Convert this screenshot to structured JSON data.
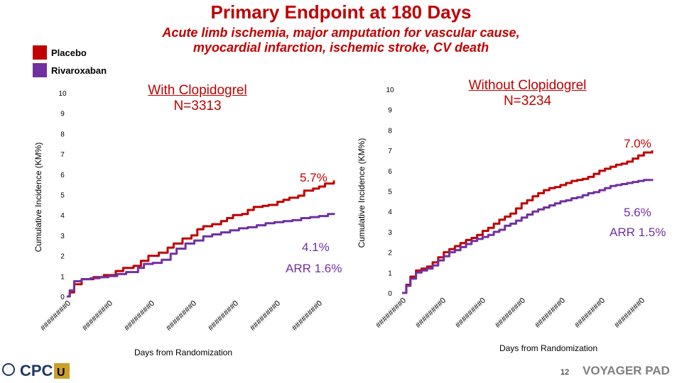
{
  "slide": {
    "title": "Primary Endpoint at 180 Days",
    "subtitle_line1": "Acute limb ischemia, major amputation for vascular cause,",
    "subtitle_line2": "myocardial infarction, ischemic stroke, CV death",
    "page_number": "12",
    "logos": {
      "left": "CPC",
      "right": "VOYAGER PAD"
    }
  },
  "legend": [
    {
      "label": "Placebo",
      "color": "#c00000"
    },
    {
      "label": "Rivaroxaban",
      "color": "#7030a0"
    }
  ],
  "chart_data": [
    {
      "type": "line",
      "title_line1": "With Clopidogrel",
      "title_line2": "N=3313",
      "xlabel": "Days from Randomization",
      "ylabel": "Cumulative Incidence (KM%)",
      "ylim": [
        0,
        10
      ],
      "yticks": [
        0,
        1,
        2,
        3,
        4,
        5,
        6,
        7,
        8,
        9,
        10
      ],
      "x_tick_labels": [
        "########0",
        "########0",
        "########0",
        "########0",
        "########0",
        "########0",
        "########0"
      ],
      "xlim": [
        0,
        180
      ],
      "grid": false,
      "annotations": {
        "placebo_end": "5.7%",
        "rivaroxaban_end": "4.1%",
        "arr": "ARR 1.6%"
      },
      "series": [
        {
          "name": "Placebo",
          "color": "#c00000",
          "points": [
            [
              0,
              0
            ],
            [
              2,
              0.2
            ],
            [
              5,
              0.6
            ],
            [
              10,
              0.85
            ],
            [
              18,
              0.95
            ],
            [
              25,
              1.05
            ],
            [
              33,
              1.25
            ],
            [
              38,
              1.4
            ],
            [
              45,
              1.5
            ],
            [
              50,
              1.75
            ],
            [
              55,
              2.0
            ],
            [
              62,
              2.15
            ],
            [
              68,
              2.4
            ],
            [
              72,
              2.6
            ],
            [
              78,
              2.85
            ],
            [
              84,
              3.0
            ],
            [
              88,
              3.3
            ],
            [
              92,
              3.45
            ],
            [
              98,
              3.55
            ],
            [
              104,
              3.7
            ],
            [
              108,
              3.85
            ],
            [
              112,
              4.0
            ],
            [
              118,
              4.05
            ],
            [
              122,
              4.25
            ],
            [
              126,
              4.4
            ],
            [
              132,
              4.45
            ],
            [
              136,
              4.5
            ],
            [
              142,
              4.65
            ],
            [
              146,
              4.75
            ],
            [
              150,
              4.85
            ],
            [
              156,
              4.95
            ],
            [
              160,
              5.2
            ],
            [
              166,
              5.3
            ],
            [
              170,
              5.4
            ],
            [
              174,
              5.55
            ],
            [
              180,
              5.7
            ]
          ]
        },
        {
          "name": "Rivaroxaban",
          "color": "#7030a0",
          "points": [
            [
              0,
              0
            ],
            [
              2,
              0.3
            ],
            [
              5,
              0.75
            ],
            [
              10,
              0.85
            ],
            [
              16,
              0.9
            ],
            [
              22,
              0.95
            ],
            [
              28,
              1.0
            ],
            [
              34,
              1.1
            ],
            [
              40,
              1.2
            ],
            [
              48,
              1.4
            ],
            [
              52,
              1.6
            ],
            [
              58,
              1.65
            ],
            [
              64,
              1.8
            ],
            [
              70,
              2.1
            ],
            [
              74,
              2.35
            ],
            [
              80,
              2.6
            ],
            [
              86,
              2.75
            ],
            [
              92,
              2.95
            ],
            [
              98,
              3.05
            ],
            [
              104,
              3.15
            ],
            [
              110,
              3.25
            ],
            [
              116,
              3.35
            ],
            [
              122,
              3.4
            ],
            [
              128,
              3.5
            ],
            [
              134,
              3.6
            ],
            [
              140,
              3.65
            ],
            [
              146,
              3.7
            ],
            [
              152,
              3.75
            ],
            [
              158,
              3.85
            ],
            [
              164,
              3.9
            ],
            [
              170,
              3.95
            ],
            [
              176,
              4.05
            ],
            [
              180,
              4.1
            ]
          ]
        }
      ]
    },
    {
      "type": "line",
      "title_line1": "Without Clopidogrel",
      "title_line2": "N=3234",
      "xlabel": "Days from Randomization",
      "ylabel": "Cumulative Incidence (KM%)",
      "ylim": [
        0,
        10
      ],
      "yticks": [
        0,
        1,
        2,
        3,
        4,
        5,
        6,
        7,
        8,
        9,
        10
      ],
      "x_tick_labels": [
        "########0",
        "########0",
        "########0",
        "########0",
        "########0",
        "########0",
        "########0"
      ],
      "xlim": [
        0,
        180
      ],
      "grid": false,
      "annotations": {
        "placebo_end": "7.0%",
        "rivaroxaban_end": "5.6%",
        "arr": "ARR 1.5%"
      },
      "series": [
        {
          "name": "Placebo",
          "color": "#c00000",
          "points": [
            [
              0,
              0
            ],
            [
              3,
              0.4
            ],
            [
              6,
              0.8
            ],
            [
              10,
              1.1
            ],
            [
              14,
              1.2
            ],
            [
              18,
              1.3
            ],
            [
              22,
              1.5
            ],
            [
              26,
              1.75
            ],
            [
              30,
              2.0
            ],
            [
              34,
              2.15
            ],
            [
              38,
              2.3
            ],
            [
              42,
              2.45
            ],
            [
              46,
              2.6
            ],
            [
              50,
              2.7
            ],
            [
              54,
              2.85
            ],
            [
              58,
              3.05
            ],
            [
              62,
              3.2
            ],
            [
              66,
              3.4
            ],
            [
              70,
              3.6
            ],
            [
              74,
              3.75
            ],
            [
              78,
              3.9
            ],
            [
              82,
              4.15
            ],
            [
              86,
              4.4
            ],
            [
              90,
              4.55
            ],
            [
              94,
              4.75
            ],
            [
              98,
              4.9
            ],
            [
              102,
              5.05
            ],
            [
              106,
              5.15
            ],
            [
              110,
              5.2
            ],
            [
              114,
              5.3
            ],
            [
              118,
              5.4
            ],
            [
              122,
              5.5
            ],
            [
              126,
              5.55
            ],
            [
              130,
              5.6
            ],
            [
              134,
              5.7
            ],
            [
              138,
              5.85
            ],
            [
              142,
              6.0
            ],
            [
              146,
              6.1
            ],
            [
              150,
              6.2
            ],
            [
              154,
              6.3
            ],
            [
              158,
              6.35
            ],
            [
              162,
              6.45
            ],
            [
              166,
              6.6
            ],
            [
              170,
              6.75
            ],
            [
              174,
              6.9
            ],
            [
              180,
              7.0
            ]
          ]
        },
        {
          "name": "Rivaroxaban",
          "color": "#7030a0",
          "points": [
            [
              0,
              0
            ],
            [
              3,
              0.35
            ],
            [
              6,
              0.7
            ],
            [
              10,
              1.0
            ],
            [
              14,
              1.1
            ],
            [
              18,
              1.2
            ],
            [
              22,
              1.35
            ],
            [
              26,
              1.6
            ],
            [
              30,
              1.8
            ],
            [
              34,
              2.0
            ],
            [
              38,
              2.1
            ],
            [
              42,
              2.25
            ],
            [
              46,
              2.4
            ],
            [
              50,
              2.55
            ],
            [
              54,
              2.65
            ],
            [
              58,
              2.75
            ],
            [
              62,
              2.85
            ],
            [
              66,
              3.0
            ],
            [
              70,
              3.1
            ],
            [
              74,
              3.3
            ],
            [
              78,
              3.4
            ],
            [
              82,
              3.55
            ],
            [
              86,
              3.7
            ],
            [
              90,
              3.85
            ],
            [
              94,
              4.0
            ],
            [
              98,
              4.1
            ],
            [
              102,
              4.2
            ],
            [
              106,
              4.3
            ],
            [
              110,
              4.4
            ],
            [
              114,
              4.5
            ],
            [
              118,
              4.55
            ],
            [
              122,
              4.65
            ],
            [
              126,
              4.7
            ],
            [
              130,
              4.8
            ],
            [
              134,
              4.9
            ],
            [
              138,
              4.95
            ],
            [
              142,
              5.05
            ],
            [
              146,
              5.15
            ],
            [
              150,
              5.25
            ],
            [
              154,
              5.3
            ],
            [
              158,
              5.35
            ],
            [
              162,
              5.4
            ],
            [
              166,
              5.45
            ],
            [
              170,
              5.5
            ],
            [
              174,
              5.55
            ],
            [
              180,
              5.6
            ]
          ]
        }
      ]
    }
  ]
}
